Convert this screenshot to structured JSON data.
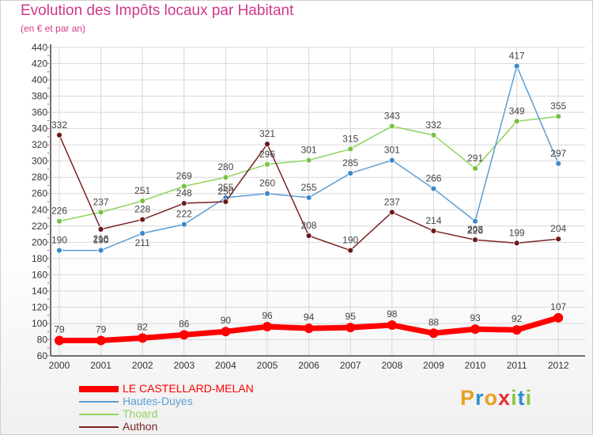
{
  "title": "Evolution des Impôts locaux par Habitant",
  "subtitle": "(en € et par an)",
  "logo": {
    "text": "Proxiti",
    "colors": [
      "#e8a020",
      "#2e8fd0",
      "#e8a020",
      "#e23030",
      "#8cc63f",
      "#2e8fd0",
      "#8cc63f"
    ]
  },
  "chart_data": {
    "type": "line",
    "title": "Evolution des Impôts locaux par Habitant",
    "subtitle": "(en € et par an)",
    "xlabel": "",
    "ylabel": "",
    "ylim": [
      60,
      440
    ],
    "yticks": [
      60,
      80,
      100,
      120,
      140,
      160,
      180,
      200,
      220,
      240,
      260,
      280,
      300,
      320,
      340,
      360,
      380,
      400,
      420,
      440
    ],
    "grid": true,
    "legend_position": "bottom-left",
    "categories": [
      "2000",
      "2001",
      "2002",
      "2003",
      "2004",
      "2005",
      "2006",
      "2007",
      "2008",
      "2009",
      "2010",
      "2011",
      "2012"
    ],
    "series": [
      {
        "name": "Thoard",
        "color": "#8fd45e",
        "marker": "#79c142",
        "width": 1.5,
        "values": [
          226,
          237,
          251,
          269,
          280,
          296,
          301,
          315,
          343,
          332,
          291,
          349,
          355
        ]
      },
      {
        "name": "Hautes-Duyes",
        "color": "#5a9ed6",
        "marker": "#3d88c8",
        "width": 1.5,
        "values": [
          190,
          190,
          211,
          222,
          255,
          260,
          255,
          285,
          301,
          266,
          226,
          417,
          297
        ]
      },
      {
        "name": "Authon",
        "color": "#7b2323",
        "marker": "#6a1b1b",
        "width": 1.5,
        "values": [
          332,
          216,
          228,
          248,
          250,
          321,
          208,
          190,
          237,
          214,
          203,
          199,
          204
        ]
      },
      {
        "name": "LE CASTELLARD-MELAN",
        "color": "#ff0000",
        "marker": "#ff0000",
        "width": 7,
        "values": [
          79,
          79,
          82,
          86,
          90,
          96,
          94,
          95,
          98,
          88,
          93,
          92,
          107
        ]
      }
    ],
    "legend_order": [
      "LE CASTELLARD-MELAN",
      "Hautes-Duyes",
      "Thoard",
      "Authon"
    ]
  }
}
